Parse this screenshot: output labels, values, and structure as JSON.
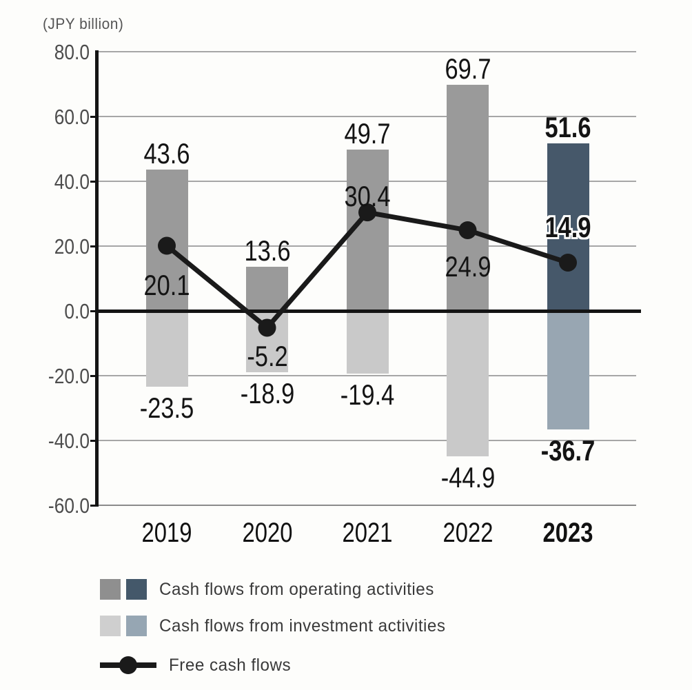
{
  "unit_label": "(JPY billion)",
  "chart_data": {
    "type": "bar",
    "subtype": "grouped-bar-with-line-overlay",
    "categories": [
      "2019",
      "2020",
      "2021",
      "2022",
      "2023"
    ],
    "series": [
      {
        "name": "Cash flows from operating activities",
        "type": "bar",
        "values": [
          43.6,
          13.6,
          49.7,
          69.7,
          51.6
        ],
        "color": "#9a9a9a",
        "highlight_color": "#46586a"
      },
      {
        "name": "Cash flows from investment activities",
        "type": "bar",
        "values": [
          -23.5,
          -18.9,
          -19.4,
          -44.9,
          -36.7
        ],
        "color": "#c9c9c9",
        "highlight_color": "#98a6b2"
      },
      {
        "name": "Free cash flows",
        "type": "line",
        "values": [
          20.1,
          -5.2,
          30.4,
          24.9,
          14.9
        ],
        "color": "#1a1a1a"
      }
    ],
    "title": "",
    "xlabel": "",
    "ylabel": "(JPY billion)",
    "ylim": [
      -60,
      80
    ],
    "ytick_step": 20,
    "ytick_labels": [
      "80.0",
      "60.0",
      "40.0",
      "20.0",
      "0.0",
      "-20.0",
      "-40.0",
      "-60.0"
    ],
    "grid": true,
    "highlight_category": "2023",
    "legend_position": "bottom"
  },
  "legend": {
    "items": [
      {
        "label": "Cash flows from operating activities",
        "marker": "two-squares",
        "swatches": [
          "#8f8f8f",
          "#44586a"
        ]
      },
      {
        "label": "Cash flows from investment activities",
        "marker": "two-squares",
        "swatches": [
          "#cfcfcf",
          "#96a6b3"
        ]
      },
      {
        "label": "Free cash flows",
        "marker": "line-with-dot",
        "color": "#1a1a1a"
      }
    ]
  }
}
